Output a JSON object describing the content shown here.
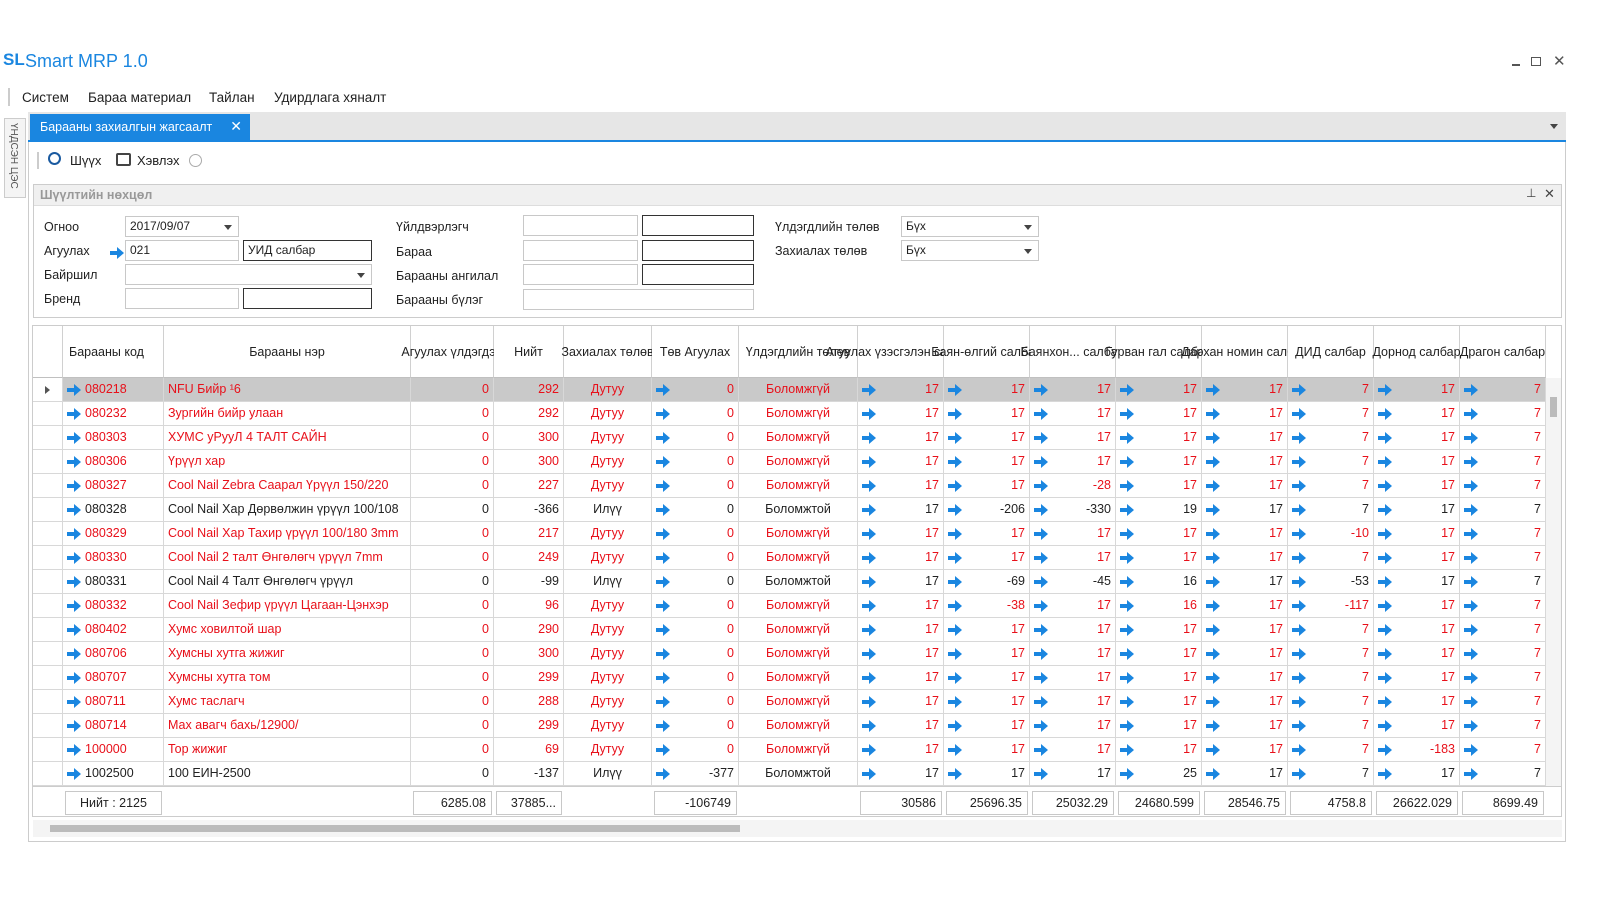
{
  "app": {
    "logo": "SL",
    "title": "Smart MRP 1.0"
  },
  "menu": [
    "Систем",
    "Бараа материал",
    "Тайлан",
    "Удирдлага хяналт"
  ],
  "side_tab": "ҮНДСЭН ЦЭС",
  "tab": "Барааны захиалгын жагсаалт",
  "toolbar": [
    "Шүүх",
    "Хэвлэх"
  ],
  "filter": {
    "title": "Шүүлтийн нөхцөл",
    "date_label": "Огноо",
    "date": "2017/09/07",
    "warehouse_label": "Агуулах",
    "warehouse_code": "021",
    "warehouse_name": "УИД салбар",
    "location_label": "Байршил",
    "brand_label": "Бренд",
    "maker_label": "Үйлдвэрлэгч",
    "item_label": "Бараа",
    "category_label": "Барааны ангилал",
    "group_label": "Барааны бүлэг",
    "stock_status_label": "Үлдэгдлийн төлөв",
    "stock_status": "Бүх",
    "order_status_label": "Захиалах төлөв",
    "order_status": "Бүх"
  },
  "table": {
    "columns": [
      "Барааны код",
      "Барааны нэр",
      "Агуулах үлдэгдэл",
      "Нийт",
      "Захиалах төлөв",
      "Төв Агуулах",
      "Үлдэгдлийн төлөв",
      "Агуулах үзэсгэлэн салбар",
      "Баян-өлгий салбар",
      "Баянхон... салбар",
      "Гурван гал салбар",
      "Дархан номин салбар",
      "ДИД салбар",
      "Дорнод салбар",
      "Драгон салбар"
    ],
    "selected_row": 0,
    "rows": [
      {
        "color": "#e8101a",
        "cells": [
          "080218",
          "NFU Бийр ¹6",
          "0",
          "292",
          "Дутуу",
          "0",
          "Боломжгүй",
          "17",
          "17",
          "17",
          "17",
          "17",
          "7",
          "17",
          "7"
        ]
      },
      {
        "color": "#e8101a",
        "cells": [
          "080232",
          "Зургийн бийр улаан",
          "0",
          "292",
          "Дутуу",
          "0",
          "Боломжгүй",
          "17",
          "17",
          "17",
          "17",
          "17",
          "7",
          "17",
          "7"
        ]
      },
      {
        "color": "#e8101a",
        "cells": [
          "080303",
          "ХУМС уРууЛ 4 ТАЛТ САЙН",
          "0",
          "300",
          "Дутуу",
          "0",
          "Боломжгүй",
          "17",
          "17",
          "17",
          "17",
          "17",
          "7",
          "17",
          "7"
        ]
      },
      {
        "color": "#e8101a",
        "cells": [
          "080306",
          "Үрүүл хар",
          "0",
          "300",
          "Дутуу",
          "0",
          "Боломжгүй",
          "17",
          "17",
          "17",
          "17",
          "17",
          "7",
          "17",
          "7"
        ]
      },
      {
        "color": "#e8101a",
        "cells": [
          "080327",
          "Cool Nail Zebra Саарал Үрүүл 150/220",
          "0",
          "227",
          "Дутуу",
          "0",
          "Боломжгүй",
          "17",
          "17",
          "-28",
          "17",
          "17",
          "7",
          "17",
          "7"
        ]
      },
      {
        "color": "#222222",
        "cells": [
          "080328",
          "Cool Nail Хар Дөрвөлжин үрүүл 100/108",
          "0",
          "-366",
          "Илүү",
          "0",
          "Боломжтой",
          "17",
          "-206",
          "-330",
          "19",
          "17",
          "7",
          "17",
          "7"
        ]
      },
      {
        "color": "#e8101a",
        "cells": [
          "080329",
          "Cool Nail Хар Тахир үрүүл 100/180 3mm",
          "0",
          "217",
          "Дутуу",
          "0",
          "Боломжгүй",
          "17",
          "17",
          "17",
          "17",
          "17",
          "-10",
          "17",
          "7"
        ]
      },
      {
        "color": "#e8101a",
        "cells": [
          "080330",
          "Cool Nail 2 талт Өнгөлөгч үрүүл 7mm",
          "0",
          "249",
          "Дутуу",
          "0",
          "Боломжгүй",
          "17",
          "17",
          "17",
          "17",
          "17",
          "7",
          "17",
          "7"
        ]
      },
      {
        "color": "#222222",
        "cells": [
          "080331",
          "Cool Nail 4 Талт Өнгөлөгч үрүүл",
          "0",
          "-99",
          "Илүү",
          "0",
          "Боломжтой",
          "17",
          "-69",
          "-45",
          "16",
          "17",
          "-53",
          "17",
          "7"
        ]
      },
      {
        "color": "#e8101a",
        "cells": [
          "080332",
          "Cool Nail Зефир үрүүл Цагаан-Цэнхэр",
          "0",
          "96",
          "Дутуу",
          "0",
          "Боломжгүй",
          "17",
          "-38",
          "17",
          "16",
          "17",
          "-117",
          "17",
          "7"
        ]
      },
      {
        "color": "#e8101a",
        "cells": [
          "080402",
          "Хумс ховилтой шар",
          "0",
          "290",
          "Дутуу",
          "0",
          "Боломжгүй",
          "17",
          "17",
          "17",
          "17",
          "17",
          "7",
          "17",
          "7"
        ]
      },
      {
        "color": "#e8101a",
        "cells": [
          "080706",
          "Хумсны хутга жижиг",
          "0",
          "300",
          "Дутуу",
          "0",
          "Боломжгүй",
          "17",
          "17",
          "17",
          "17",
          "17",
          "7",
          "17",
          "7"
        ]
      },
      {
        "color": "#e8101a",
        "cells": [
          "080707",
          "Хумсны хутга том",
          "0",
          "299",
          "Дутуу",
          "0",
          "Боломжгүй",
          "17",
          "17",
          "17",
          "17",
          "17",
          "7",
          "17",
          "7"
        ]
      },
      {
        "color": "#e8101a",
        "cells": [
          "080711",
          "Хумс таслагч",
          "0",
          "288",
          "Дутуу",
          "0",
          "Боломжгүй",
          "17",
          "17",
          "17",
          "17",
          "17",
          "7",
          "17",
          "7"
        ]
      },
      {
        "color": "#e8101a",
        "cells": [
          "080714",
          "Мах авагч бахь/12900/",
          "0",
          "299",
          "Дутуу",
          "0",
          "Боломжгүй",
          "17",
          "17",
          "17",
          "17",
          "17",
          "7",
          "17",
          "7"
        ]
      },
      {
        "color": "#e8101a",
        "cells": [
          "100000",
          "Тор жижиг",
          "0",
          "69",
          "Дутуу",
          "0",
          "Боломжгүй",
          "17",
          "17",
          "17",
          "17",
          "17",
          "7",
          "-183",
          "7"
        ]
      },
      {
        "color": "#222222",
        "cells": [
          "1002500",
          "100 ЕИН-2500",
          "0",
          "-137",
          "Илүү",
          "-377",
          "Боломжтой",
          "17",
          "17",
          "17",
          "25",
          "17",
          "7",
          "17",
          "7"
        ]
      }
    ],
    "footer": [
      "Нийт : 2125",
      null,
      "6285.08",
      "37885...",
      null,
      "-106749",
      null,
      "30586",
      "25696.35",
      "25032.29",
      "24680.599",
      "28546.75",
      "4758.8",
      "26622.029",
      "8699.49"
    ]
  }
}
